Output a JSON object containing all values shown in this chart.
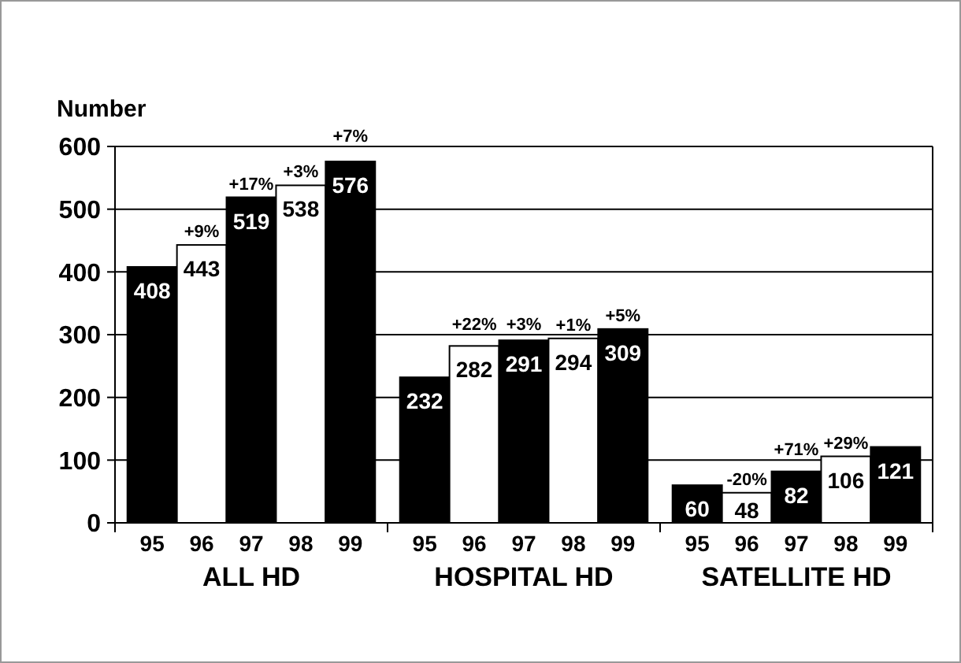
{
  "chart_data": {
    "type": "bar",
    "ylabel": "Number",
    "categories": [
      "95",
      "96",
      "97",
      "98",
      "99",
      "95",
      "96",
      "97",
      "98",
      "99",
      "95",
      "96",
      "97",
      "98",
      "99"
    ],
    "values": [
      408,
      443,
      519,
      538,
      576,
      232,
      282,
      291,
      294,
      309,
      60,
      48,
      82,
      106,
      121
    ],
    "colors": [
      "#000000",
      "#ffffff",
      "#000000",
      "#ffffff",
      "#000000",
      "#000000",
      "#ffffff",
      "#000000",
      "#ffffff",
      "#000000",
      "#000000",
      "#ffffff",
      "#000000",
      "#ffffff",
      "#000000"
    ],
    "data_labels": true,
    "ylim": [
      0,
      600
    ],
    "yticks": [
      0,
      100,
      200,
      300,
      400,
      500,
      600
    ],
    "grid": "y",
    "annotations": [
      "ALL HD",
      "HOSPITAL HD",
      "SATELLITE HD",
      "+9%",
      "+17%",
      "+3%",
      "+7%",
      "+22%",
      "+3%",
      "+1%",
      "+5%",
      "-20%",
      "+71%",
      "+29%"
    ]
  }
}
